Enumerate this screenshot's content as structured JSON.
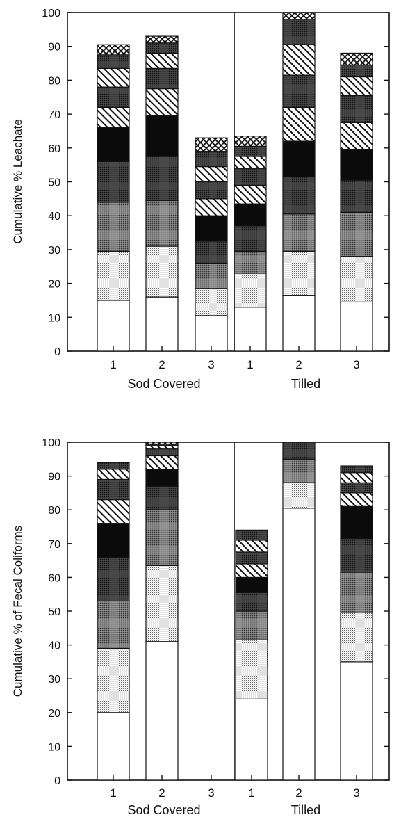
{
  "chart_data": [
    {
      "type": "bar",
      "stacked": true,
      "ylabel": "Cumulative % Leachate",
      "xlabel": "",
      "ylim": [
        0,
        100
      ],
      "yticks": [
        0,
        10,
        20,
        30,
        40,
        50,
        60,
        70,
        80,
        90,
        100
      ],
      "categories": [
        "1",
        "2",
        "3",
        "1",
        "2",
        "3"
      ],
      "groups": [
        {
          "label": "Sod Covered",
          "categories": [
            "1",
            "2",
            "3"
          ]
        },
        {
          "label": "Tilled",
          "categories": [
            "1",
            "2",
            "3"
          ]
        }
      ],
      "divider_after_category_index": 2,
      "cumulative_tops": [
        [
          15,
          29.5,
          44,
          56,
          66,
          72,
          78,
          83.5,
          87.5,
          90.5
        ],
        [
          16,
          31,
          44.5,
          57.5,
          69.5,
          77.5,
          83.5,
          88,
          91,
          93
        ],
        [
          10.5,
          18.5,
          26,
          32.5,
          40,
          45,
          50,
          54.5,
          59,
          63
        ],
        [
          13,
          23,
          29.5,
          37,
          43.5,
          49,
          54,
          57.5,
          60.5,
          63.5
        ],
        [
          16.5,
          29.5,
          40.5,
          51.5,
          62,
          72,
          81.5,
          90.5,
          98,
          100
        ],
        [
          14.5,
          28,
          41,
          50.5,
          59.5,
          67.5,
          75.5,
          81,
          84.5,
          88
        ]
      ],
      "segment_fill_order": [
        "white",
        "light-dots",
        "medium-dots",
        "dark-dots",
        "black",
        "diagonal-hatch",
        "dark-dots",
        "diagonal-hatch",
        "dark-dots",
        "crosshatch"
      ]
    },
    {
      "type": "bar",
      "stacked": true,
      "ylabel": "Cumulative % of Fecal Coliforms",
      "xlabel": "",
      "ylim": [
        0,
        100
      ],
      "yticks": [
        0,
        10,
        20,
        30,
        40,
        50,
        60,
        70,
        80,
        90,
        100
      ],
      "categories": [
        "1",
        "2",
        "3",
        "1",
        "2",
        "3"
      ],
      "groups": [
        {
          "label": "Sod Covered",
          "categories": [
            "1",
            "2",
            "3"
          ]
        },
        {
          "label": "Tilled",
          "categories": [
            "1",
            "2",
            "3"
          ]
        }
      ],
      "divider_after_category_index": 2,
      "cumulative_tops": [
        [
          20,
          39,
          53,
          66,
          76,
          83,
          89,
          92,
          94,
          94
        ],
        [
          41,
          63.5,
          80,
          87,
          92,
          96,
          98,
          99,
          99.5,
          100
        ],
        [],
        [
          24,
          41.5,
          50,
          55.5,
          60,
          64,
          67.5,
          71,
          74,
          74
        ],
        [
          80.5,
          88,
          95,
          100,
          100,
          100,
          100,
          100,
          100,
          100
        ],
        [
          35,
          49.5,
          61.5,
          71.5,
          81,
          85,
          88,
          91,
          93,
          93
        ]
      ],
      "segment_fill_order": [
        "white",
        "light-dots",
        "medium-dots",
        "dark-dots",
        "black",
        "diagonal-hatch",
        "dark-dots",
        "diagonal-hatch",
        "dark-dots",
        "crosshatch"
      ]
    }
  ]
}
